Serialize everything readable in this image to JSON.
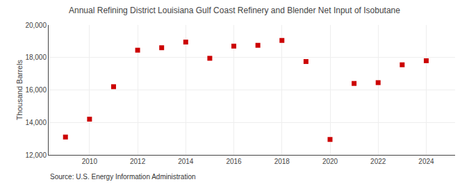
{
  "chart_data": {
    "type": "scatter",
    "title": "Annual Refining District Louisiana Gulf Coast Refinery and Blender Net Input of Isobutane",
    "ylabel": "Thousand Barrels",
    "annotations": [
      "Source: U.S. Energy Information Administration"
    ],
    "x": [
      2009,
      2010,
      2011,
      2012,
      2013,
      2014,
      2015,
      2016,
      2017,
      2018,
      2019,
      2020,
      2021,
      2022,
      2023,
      2024
    ],
    "values": [
      13100,
      14200,
      16200,
      18450,
      18600,
      18950,
      17950,
      18700,
      18750,
      19050,
      17750,
      12950,
      16400,
      16450,
      17550,
      17800
    ],
    "color": "#cc0000",
    "marker": "square",
    "xlim": [
      2008.3,
      2025.2
    ],
    "xticks": [
      2010,
      2012,
      2014,
      2016,
      2018,
      2020,
      2022,
      2024
    ],
    "ylim": [
      12000,
      20000
    ],
    "yticks": [
      {
        "value": 12000,
        "label": "12,000"
      },
      {
        "value": 14000,
        "label": "14,000"
      },
      {
        "value": 16000,
        "label": "16,000"
      },
      {
        "value": 18000,
        "label": "18,000"
      },
      {
        "value": 20000,
        "label": "20,000"
      }
    ],
    "grid": true
  }
}
